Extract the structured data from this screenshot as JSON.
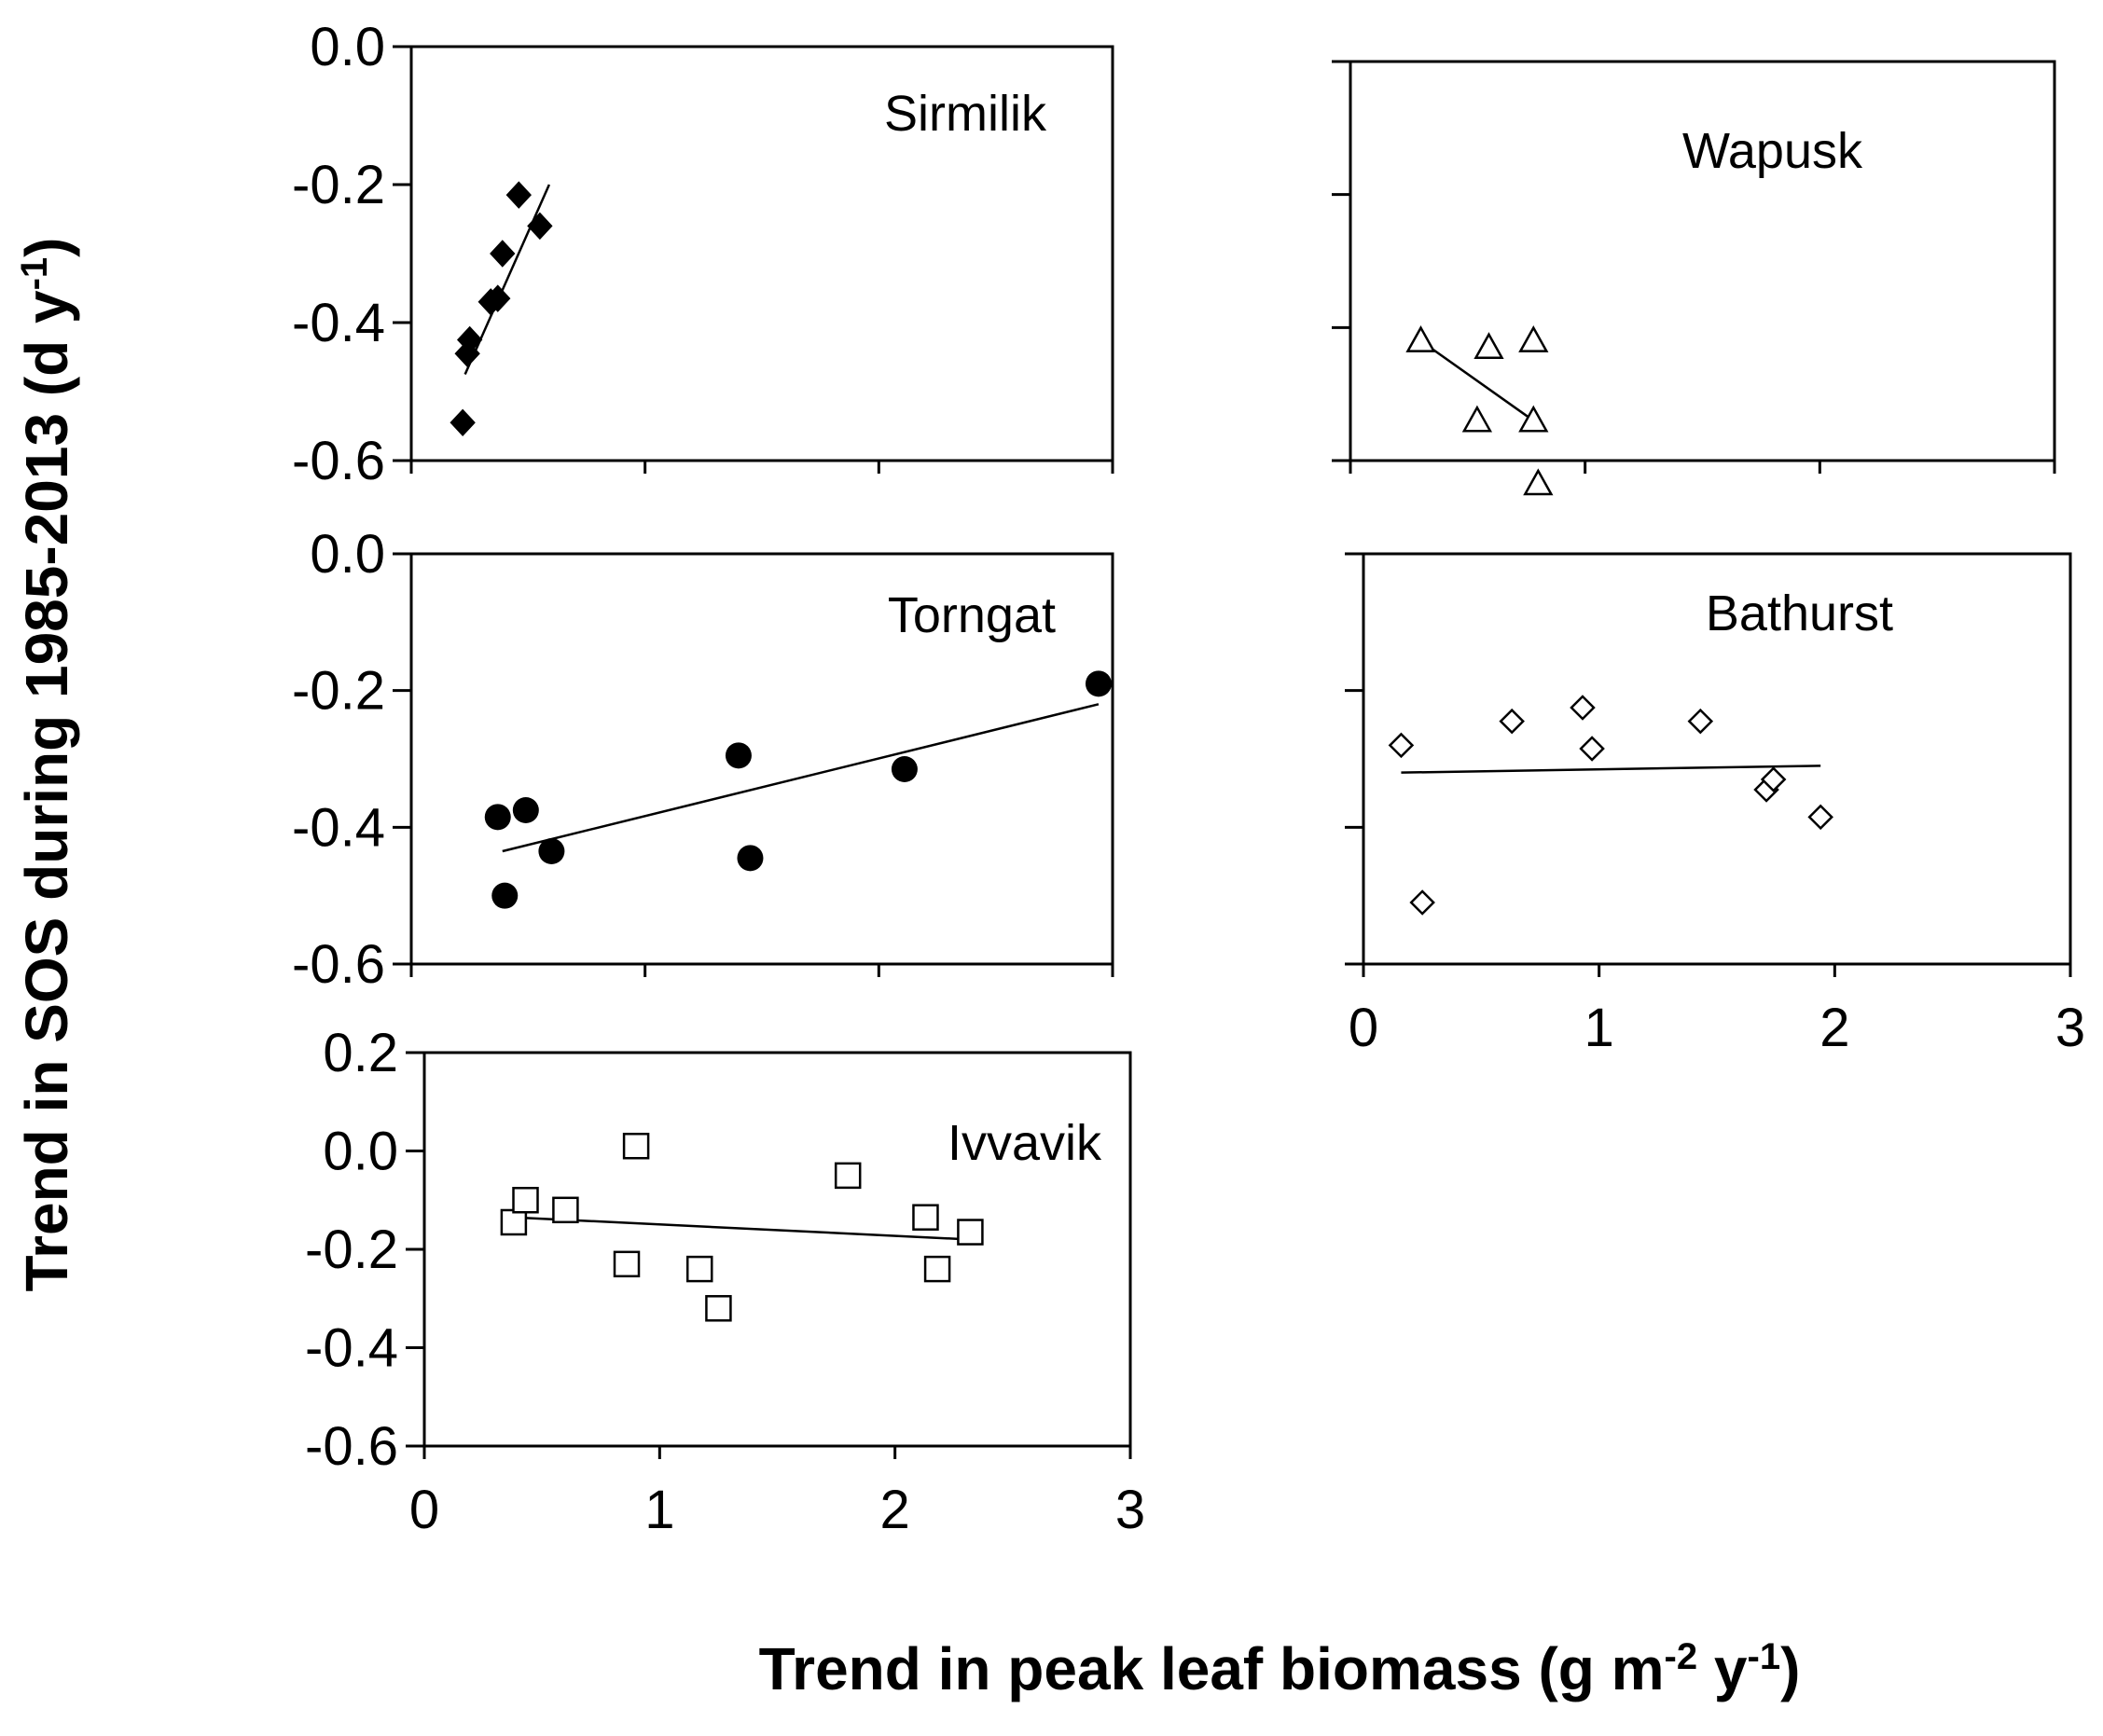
{
  "figure": {
    "ylabel_prefix": "Trend in SOS during 1985-2013 (d y",
    "ylabel_sup": "-1",
    "ylabel_suffix": ")",
    "xlabel_part1": "Trend in peak leaf biomass (g m",
    "xlabel_sup1": "-2",
    "xlabel_part2": " y",
    "xlabel_sup2": "-1",
    "xlabel_part3": ")"
  },
  "chart_data": [
    {
      "type": "scatter",
      "title": "Sirmilik",
      "marker": "filled-diamond",
      "xlim": [
        0,
        3
      ],
      "ylim": [
        -0.6,
        0.0
      ],
      "yticks": [
        0.0,
        -0.2,
        -0.4,
        -0.6
      ],
      "ytick_labels": [
        "0.0",
        "-0.2",
        "-0.4",
        "-0.6"
      ],
      "show_ytick_labels": true,
      "show_xtick_labels": false,
      "x": [
        0.46,
        0.55,
        0.39,
        0.37,
        0.34,
        0.25,
        0.24,
        0.22
      ],
      "y": [
        -0.215,
        -0.26,
        -0.3,
        -0.365,
        -0.37,
        -0.425,
        -0.445,
        -0.545
      ],
      "trendline": [
        [
          0.23,
          -0.475
        ],
        [
          0.59,
          -0.2
        ]
      ]
    },
    {
      "type": "scatter",
      "title": "Wapusk",
      "marker": "open-triangle",
      "xlim": [
        0,
        3
      ],
      "ylim": [
        -0.6,
        0.0
      ],
      "yticks": [
        0.0,
        -0.2,
        -0.4,
        -0.6
      ],
      "ytick_labels": [],
      "show_ytick_labels": false,
      "show_xtick_labels": false,
      "x": [
        0.3,
        0.59,
        0.78,
        0.54,
        0.78,
        0.8
      ],
      "y": [
        -0.42,
        -0.43,
        -0.42,
        -0.54,
        -0.54,
        -0.635
      ],
      "trendline": [
        [
          0.3,
          -0.42
        ],
        [
          0.78,
          -0.54
        ]
      ]
    },
    {
      "type": "scatter",
      "title": "Torngat",
      "marker": "filled-circle",
      "xlim": [
        0,
        3
      ],
      "ylim": [
        -0.6,
        0.0
      ],
      "yticks": [
        0.0,
        -0.2,
        -0.4,
        -0.6
      ],
      "ytick_labels": [
        "0.0",
        "-0.2",
        "-0.4",
        "-0.6"
      ],
      "show_ytick_labels": true,
      "show_xtick_labels": false,
      "x": [
        2.94,
        1.4,
        2.11,
        0.37,
        0.49,
        0.6,
        1.45,
        0.4
      ],
      "y": [
        -0.19,
        -0.295,
        -0.315,
        -0.385,
        -0.375,
        -0.435,
        -0.445,
        -0.5
      ],
      "trendline": [
        [
          0.39,
          -0.435
        ],
        [
          2.94,
          -0.22
        ]
      ]
    },
    {
      "type": "scatter",
      "title": "Bathurst",
      "marker": "open-diamond",
      "xlim": [
        0,
        3
      ],
      "ylim": [
        -0.6,
        0.0
      ],
      "yticks": [
        0.0,
        -0.2,
        -0.4,
        -0.6
      ],
      "ytick_labels": [],
      "show_ytick_labels": false,
      "show_xtick_labels": true,
      "xticks": [
        0,
        1,
        2,
        3
      ],
      "xtick_labels": [
        "0",
        "1",
        "2",
        "3"
      ],
      "x": [
        0.16,
        0.63,
        0.93,
        0.97,
        1.43,
        1.71,
        1.74,
        1.94,
        0.25
      ],
      "y": [
        -0.28,
        -0.245,
        -0.225,
        -0.285,
        -0.245,
        -0.345,
        -0.33,
        -0.385,
        -0.51
      ],
      "trendline": [
        [
          0.16,
          -0.32
        ],
        [
          1.94,
          -0.31
        ]
      ]
    },
    {
      "type": "scatter",
      "title": "Ivvavik",
      "marker": "open-square",
      "xlim": [
        0,
        3
      ],
      "ylim": [
        -0.6,
        0.2
      ],
      "yticks": [
        0.2,
        0.0,
        -0.2,
        -0.4,
        -0.6
      ],
      "ytick_labels": [
        "0.2",
        "0.0",
        "-0.2",
        "-0.4",
        "-0.6"
      ],
      "show_ytick_labels": true,
      "show_xtick_labels": true,
      "xticks": [
        0,
        1,
        2,
        3
      ],
      "xtick_labels": [
        "0",
        "1",
        "2",
        "3"
      ],
      "x": [
        0.38,
        0.43,
        0.6,
        0.9,
        0.86,
        1.17,
        1.25,
        1.8,
        2.13,
        2.18,
        2.32
      ],
      "y": [
        -0.145,
        -0.1,
        -0.12,
        0.01,
        -0.23,
        -0.24,
        -0.32,
        -0.05,
        -0.135,
        -0.24,
        -0.165
      ],
      "trendline": [
        [
          0.38,
          -0.135
        ],
        [
          2.32,
          -0.18
        ]
      ]
    }
  ]
}
